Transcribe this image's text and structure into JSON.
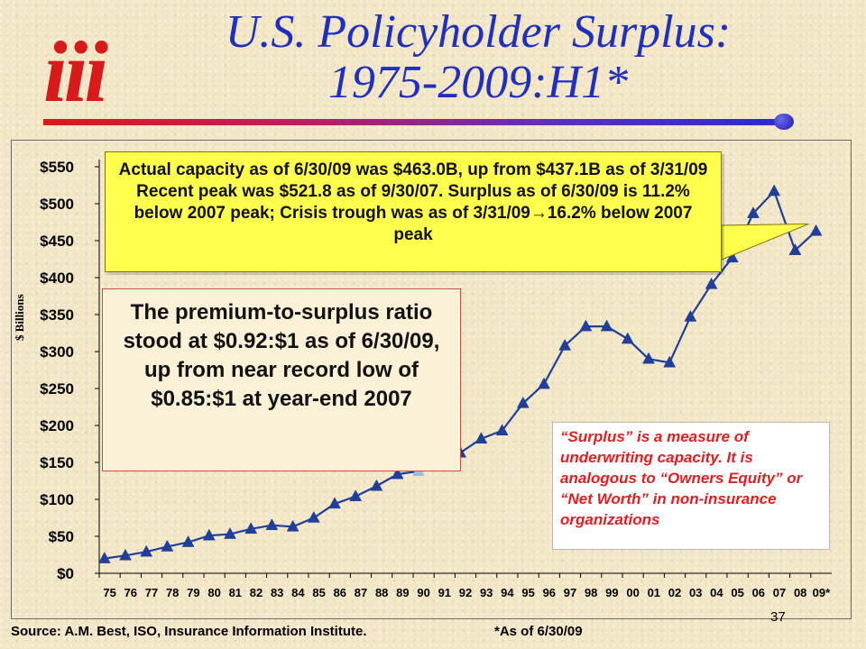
{
  "logo": {
    "text": "iii"
  },
  "title": {
    "line1": "U.S. Policyholder Surplus:",
    "line2": "1975-2009:H1*"
  },
  "colors": {
    "title": "#1f2fbf",
    "line": "#1f3f9a",
    "marker": "#1f3f9a",
    "highlight": "#a9b8d8",
    "callout_yellow": "#ffff4d",
    "note_red": "#e02020",
    "logo_red": "#d81a1a"
  },
  "chart_data": {
    "type": "line",
    "ylabel": "$ Billions",
    "ylim": [
      0,
      550
    ],
    "yticks": [
      0,
      50,
      100,
      150,
      200,
      250,
      300,
      350,
      400,
      450,
      500,
      550
    ],
    "ytick_labels": [
      "$0",
      "$50",
      "$100",
      "$150",
      "$200",
      "$250",
      "$300",
      "$350",
      "$400",
      "$450",
      "$500",
      "$550"
    ],
    "categories": [
      "75",
      "76",
      "77",
      "78",
      "79",
      "80",
      "81",
      "82",
      "83",
      "84",
      "85",
      "86",
      "87",
      "88",
      "89",
      "90",
      "91",
      "92",
      "93",
      "94",
      "95",
      "96",
      "97",
      "98",
      "99",
      "00",
      "01",
      "02",
      "03",
      "04",
      "05",
      "06",
      "07",
      "08",
      "09*"
    ],
    "series": [
      {
        "values": [
          20,
          24,
          29,
          36,
          42,
          51,
          53,
          60,
          65,
          63,
          75,
          94,
          104,
          118,
          134,
          138,
          159,
          163,
          182,
          193,
          230,
          256,
          308,
          334,
          334,
          317,
          290,
          285,
          347,
          391,
          427,
          487,
          517,
          437,
          463
        ]
      }
    ],
    "grid": false
  },
  "callouts": {
    "top": "Actual capacity as of 6/30/09 was $463.0B, up from $437.1B as of 3/31/09  Recent peak was $521.8 as of 9/30/07.  Surplus as of  6/30/09 is 11.2% below 2007 peak; Crisis trough was as of 3/31/09→16.2% below 2007 peak",
    "middle": "The premium-to-surplus ratio stood at $0.92:$1 as of 6/30/09, up from near record low of $0.85:$1 at year-end 2007",
    "right": "“Surplus” is a measure of underwriting capacity.  It is analogous to “Owners Equity” or “Net Worth” in non-insurance organizations"
  },
  "footer": {
    "source": "Source:  A.M. Best, ISO, Insurance Information Institute.",
    "footnote": "*As of 6/30/09",
    "page": "37"
  }
}
